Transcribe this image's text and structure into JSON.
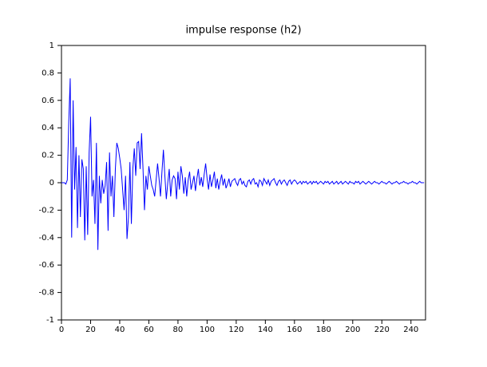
{
  "chart_data": {
    "type": "line",
    "title": "impulse response (h2)",
    "series": [
      {
        "name": "h2",
        "color": "#0000ff",
        "values": [
          0,
          0,
          0,
          -0.01,
          0.02,
          0.44,
          0.76,
          -0.4,
          0.6,
          -0.05,
          0.26,
          -0.33,
          0.2,
          -0.25,
          0.17,
          0.1,
          -0.42,
          0.12,
          -0.38,
          0.22,
          0.48,
          -0.1,
          0.02,
          -0.3,
          0.29,
          -0.49,
          0.05,
          -0.15,
          0.02,
          -0.08,
          -0.02,
          0.15,
          -0.35,
          0.22,
          -0.1,
          0.05,
          -0.25,
          0.1,
          0.29,
          0.25,
          0.18,
          0.1,
          -0.05,
          -0.2,
          0.05,
          -0.41,
          -0.25,
          0.15,
          -0.3,
          0.1,
          0.25,
          0.05,
          0.29,
          0.3,
          0.1,
          0.36,
          0.1,
          -0.2,
          0.05,
          -0.05,
          0.12,
          0.05,
          -0.02,
          -0.05,
          -0.1,
          0.02,
          0.14,
          0.03,
          -0.1,
          0.08,
          0.24,
          0.05,
          -0.12,
          0,
          0.1,
          -0.1,
          0.02,
          0.05,
          0.03,
          -0.12,
          0.08,
          -0.05,
          0.12,
          0.05,
          -0.08,
          0.04,
          -0.1,
          0.02,
          0.08,
          -0.05,
          0,
          0.05,
          -0.06,
          0.03,
          0.1,
          -0.02,
          0.04,
          -0.03,
          0.06,
          0.14,
          0.03,
          -0.05,
          0.06,
          -0.03,
          0.02,
          0.08,
          -0.04,
          0.03,
          -0.05,
          0.01,
          0.06,
          -0.02,
          0.03,
          -0.04,
          -0.01,
          0.03,
          -0.03,
          0.01,
          0.02,
          0.03,
          0,
          -0.02,
          0.02,
          0.03,
          -0.01,
          0.01,
          -0.02,
          -0.03,
          0.01,
          0.02,
          -0.01,
          0.02,
          0.03,
          -0.01,
          0,
          -0.03,
          0.02,
          0.01,
          -0.02,
          0.03,
          0.01,
          -0.01,
          0.02,
          -0.02,
          0.01,
          0.02,
          0.03,
          0,
          -0.02,
          0.01,
          0.02,
          -0.01,
          0.01,
          0.02,
          0,
          -0.02,
          0.01,
          0.02,
          -0.01,
          0.01,
          0.02,
          0.01,
          -0.01,
          0,
          0.01,
          -0.01,
          0.01,
          0,
          0.01,
          -0.01,
          0,
          0.01,
          -0.01,
          0.01,
          0,
          0.01,
          -0.01,
          0,
          0.01,
          0,
          -0.01,
          0.01,
          0,
          0.01,
          -0.01,
          0,
          0.01,
          -0.01,
          0,
          0.01,
          -0.01,
          0,
          0.01,
          -0.01,
          0,
          0.01,
          0,
          -0.01,
          0.01,
          0,
          0,
          -0.01,
          0.01,
          0,
          0.01,
          -0.01,
          0,
          0.01,
          0,
          -0.01,
          0,
          0.01,
          0,
          -0.01,
          0,
          0.01,
          0,
          0,
          -0.01,
          0,
          0.01,
          0,
          0,
          -0.01,
          0,
          0.01,
          0,
          -0.01,
          0,
          0,
          0.01,
          0,
          -0.01,
          0,
          0,
          0.01,
          0,
          0,
          -0.01,
          0,
          0,
          0.01,
          0,
          0,
          -0.01,
          0,
          0.01,
          0,
          0,
          0
        ]
      }
    ],
    "xlim": [
      0,
      250
    ],
    "xticks": [
      0,
      20,
      40,
      60,
      80,
      100,
      120,
      140,
      160,
      180,
      200,
      220,
      240
    ],
    "ylim": [
      -1,
      1
    ],
    "yticks": [
      -1,
      -0.8,
      -0.6,
      -0.4,
      -0.2,
      0,
      0.2,
      0.4,
      0.6,
      0.8,
      1
    ],
    "grid": false
  }
}
